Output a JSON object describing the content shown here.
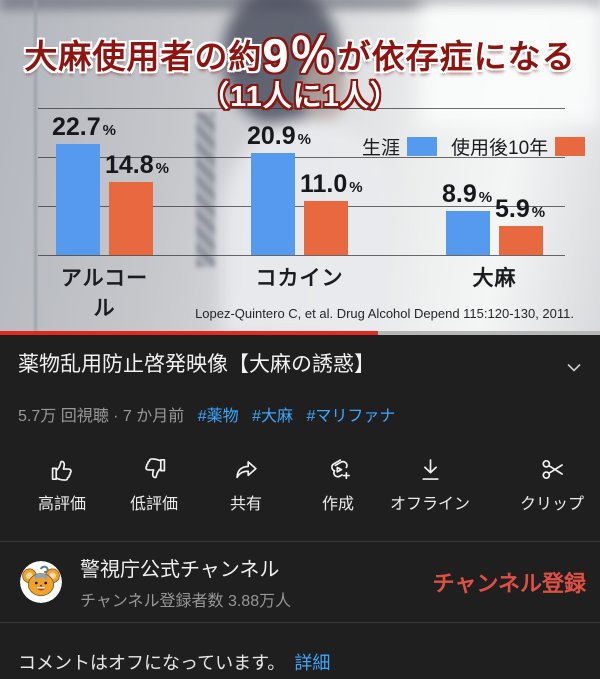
{
  "video": {
    "overlay": {
      "line1_prefix": "大麻使用者の約",
      "line1_big": "9％",
      "line1_suffix": "が依存症になる",
      "line2": "（11人に1人）"
    },
    "citation": "Lopez-Quintero C, et al. Drug Alcohol Depend 115:120-130, 2011.",
    "progress_percent": 63
  },
  "chart_data": {
    "type": "bar",
    "categories": [
      "アルコール",
      "コカイン",
      "大麻"
    ],
    "series": [
      {
        "name": "生涯",
        "color": "#569af0",
        "values": [
          22.7,
          20.9,
          8.9
        ]
      },
      {
        "name": "使用後10年",
        "color": "#e8683f",
        "values": [
          14.8,
          11.0,
          5.9
        ]
      }
    ],
    "unit": "%",
    "title": "",
    "xlabel": "",
    "ylabel": "",
    "ylim": [
      0,
      30
    ],
    "gridlines": [
      0,
      10,
      20,
      30
    ],
    "legend_position": "top-right"
  },
  "info": {
    "title": "薬物乱用防止啓発映像【大麻の誘惑】",
    "meta": "5.7万 回視聴 · 7 か月前",
    "hashtags": [
      "#薬物",
      "#大麻",
      "#マリファナ"
    ]
  },
  "actions": [
    {
      "label": "高評価"
    },
    {
      "label": "低評価"
    },
    {
      "label": "共有"
    },
    {
      "label": "作成"
    },
    {
      "label": "オフライン"
    },
    {
      "label": "クリップ"
    }
  ],
  "channel": {
    "name": "警視庁公式チャンネル",
    "subscribers": "チャンネル登録者数 3.88万人",
    "subscribe_label": "チャンネル登録"
  },
  "comments": {
    "status": "コメントはオフになっています。",
    "link": "詳細"
  },
  "colors": {
    "link_blue": "#3ea6ff",
    "subscribe_red": "#df4f44",
    "progress_red": "#e02a20",
    "series_lifetime_blue": "#569af0",
    "series_10yr_orange": "#e8683f",
    "overlay_dark_red": "#8e1410"
  }
}
